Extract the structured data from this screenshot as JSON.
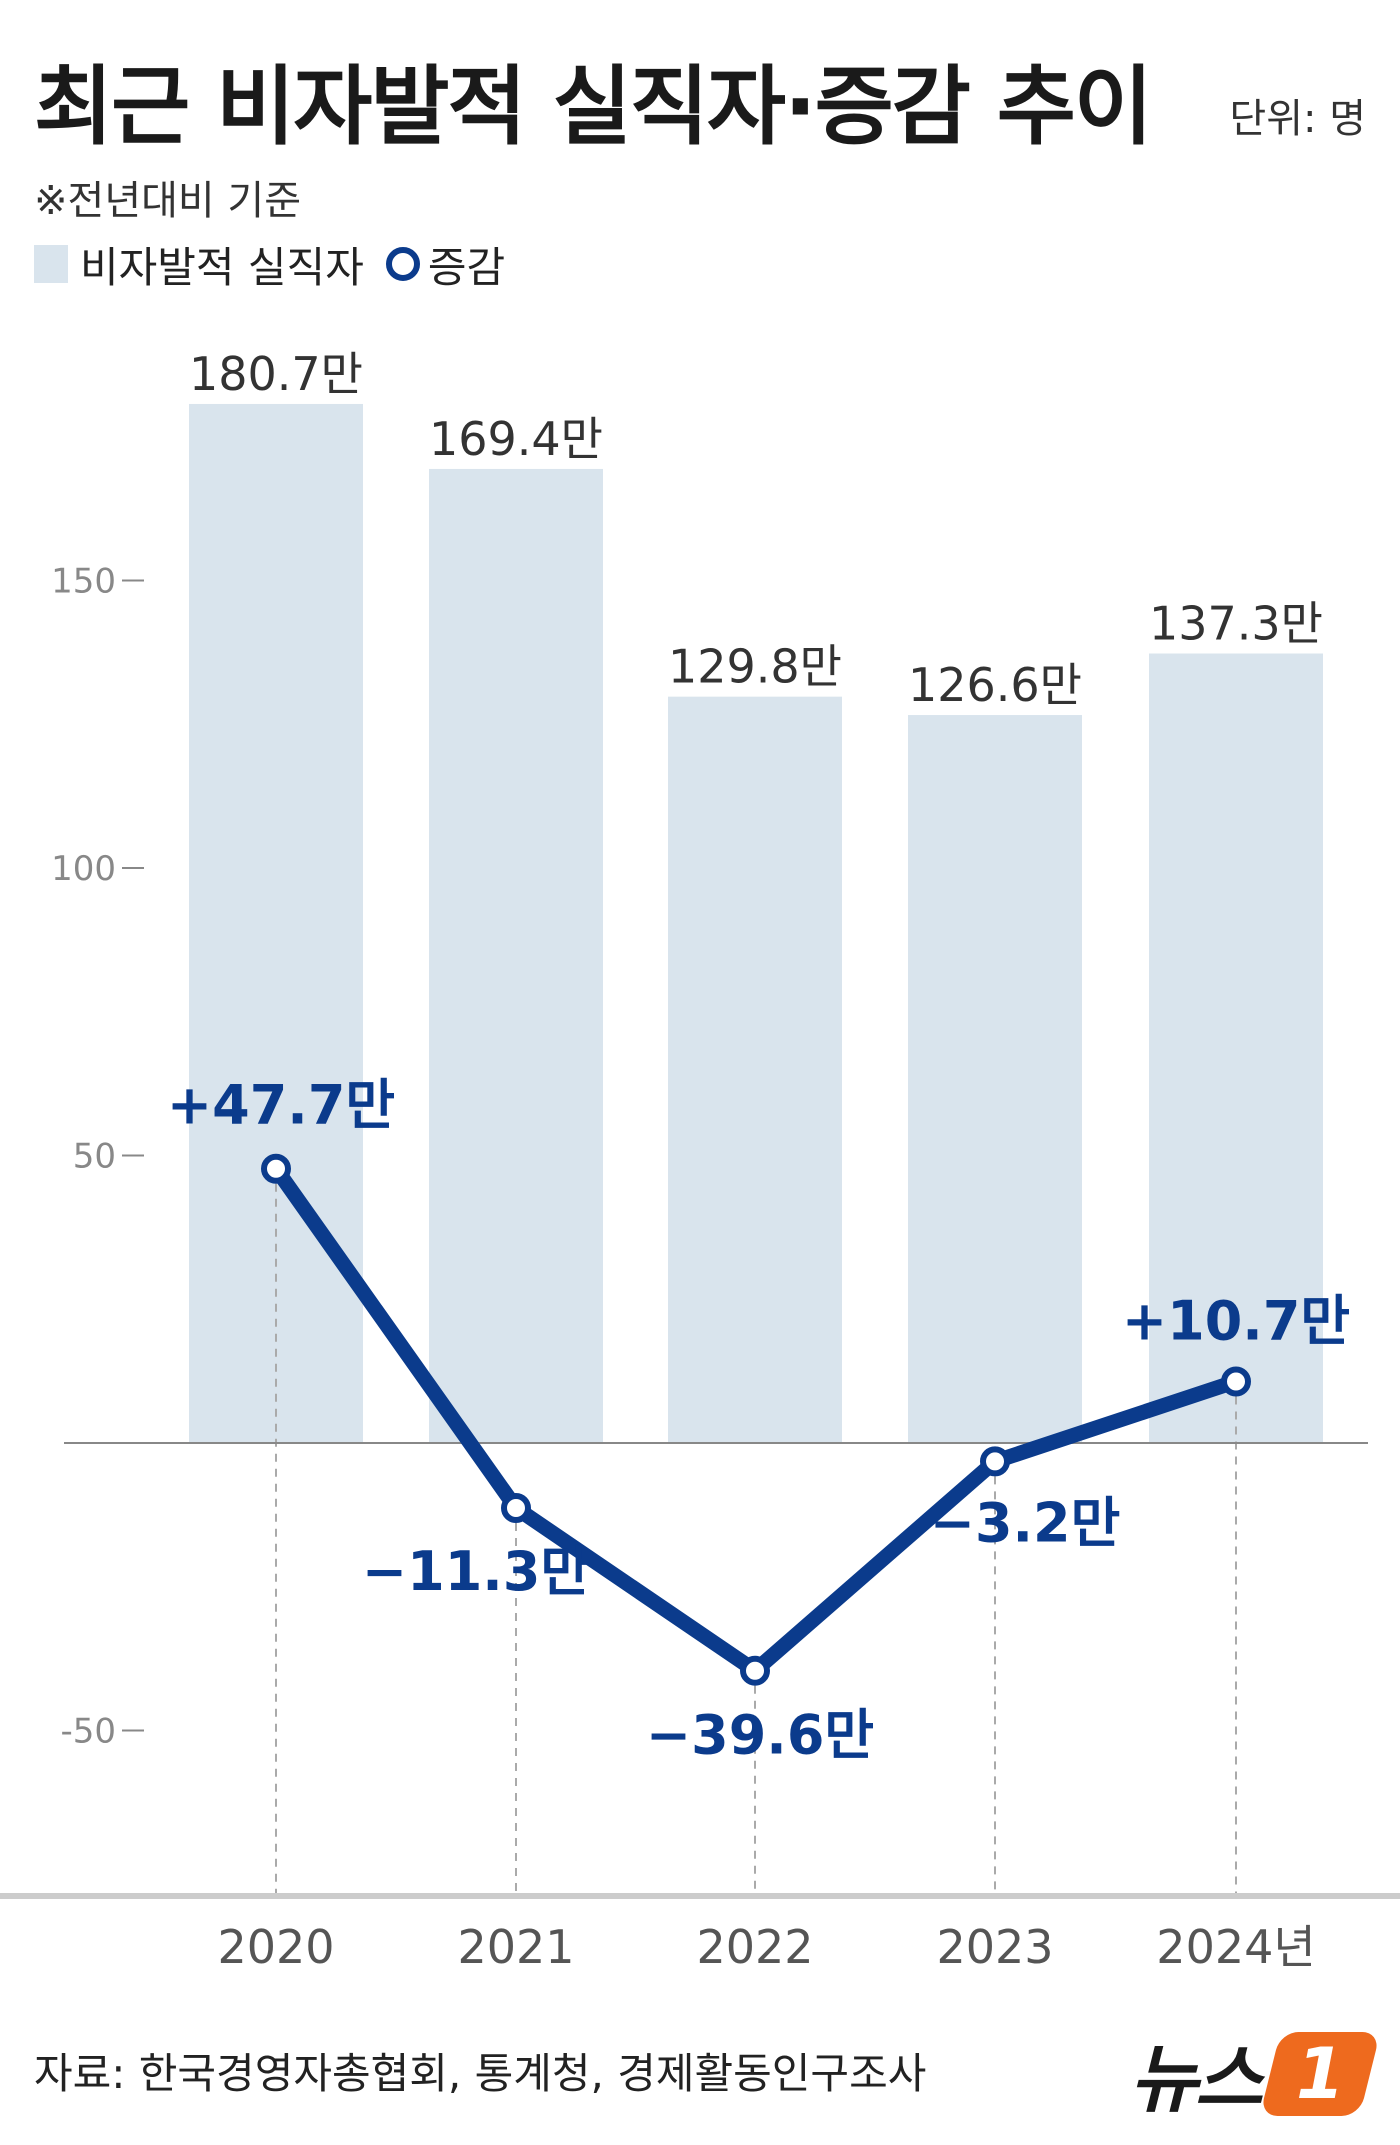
{
  "header": {
    "title": "최근 비자발적 실직자·증감 추이",
    "unit": "단위: 명",
    "note": "※전년대비 기준"
  },
  "legend": {
    "bar_label": "비자발적 실직자",
    "line_label": "증감"
  },
  "colors": {
    "bar": "#d9e4ed",
    "line": "#0b3b8c",
    "axis": "#888888",
    "text": "#333333"
  },
  "chart_data": {
    "type": "bar",
    "categories": [
      "2020",
      "2021",
      "2022",
      "2023",
      "2024년"
    ],
    "series": [
      {
        "name": "비자발적 실직자",
        "type": "bar",
        "values": [
          180.7,
          169.4,
          129.8,
          126.6,
          137.3
        ],
        "labels": [
          "180.7만",
          "169.4만",
          "129.8만",
          "126.6만",
          "137.3만"
        ]
      },
      {
        "name": "증감",
        "type": "line",
        "values": [
          47.7,
          -11.3,
          -39.6,
          -3.2,
          10.7
        ],
        "labels": [
          "+47.7만",
          "−11.3만",
          "−39.6만",
          "−3.2만",
          "+10.7만"
        ]
      }
    ],
    "y_ticks": [
      150,
      100,
      50,
      -50
    ],
    "y_tick_labels": [
      "150",
      "100",
      "50",
      "-50"
    ],
    "ylim": [
      -75,
      190
    ],
    "grid": false,
    "legend_position": "top-left"
  },
  "footer": {
    "source": "자료: 한국경영자총협회, 통계청, 경제활동인구조사",
    "logo_text": "뉴스",
    "logo_badge": "1"
  }
}
